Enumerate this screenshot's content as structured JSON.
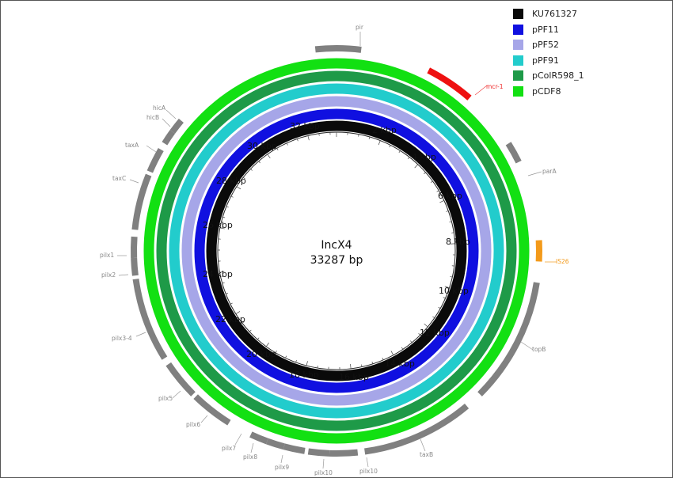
{
  "chart_data": {
    "type": "circular-genome-map",
    "title": "IncX4",
    "subtitle": "33287 bp",
    "total_length_bp": 33287,
    "center": [
      425,
      317
    ],
    "legend": [
      {
        "name": "KU761327",
        "color": "#0a0a0a"
      },
      {
        "name": "pPF11",
        "color": "#1010e0"
      },
      {
        "name": "pPF52",
        "color": "#a6a6e8"
      },
      {
        "name": "pPF91",
        "color": "#22cccc"
      },
      {
        "name": "pColR598_1",
        "color": "#1e9a48"
      },
      {
        "name": "pCDF8",
        "color": "#12e012"
      }
    ],
    "rings": [
      {
        "name": "KU761327",
        "color": "#0a0a0a",
        "radius": 158,
        "width": 13
      },
      {
        "name": "pPF11",
        "color": "#1010e0",
        "radius": 173,
        "width": 13
      },
      {
        "name": "pPF52",
        "color": "#a6a6e8",
        "radius": 189,
        "width": 13
      },
      {
        "name": "pPF91",
        "color": "#22cccc",
        "radius": 205,
        "width": 13
      },
      {
        "name": "pColR598_1",
        "color": "#1e9a48",
        "radius": 221,
        "width": 13
      },
      {
        "name": "pCDF8",
        "color": "#12e012",
        "radius": 237,
        "width": 13
      }
    ],
    "tick_labels": [
      "2 kbp",
      "4 kbp",
      "6 kbp",
      "8 kbp",
      "10 kbp",
      "12 kbp",
      "14 kbp",
      "16 kbp",
      "18 kbp",
      "20 kbp",
      "22 kbp",
      "24 kbp",
      "26 kbp",
      "28 kbp",
      "30 kbp",
      "32 kbp"
    ],
    "genes": [
      {
        "name": "pir",
        "start_deg": -6,
        "end_deg": 7,
        "color": "#808080"
      },
      {
        "name": "mcr-1",
        "start_deg": 27,
        "end_deg": 41,
        "color": "#ee1111"
      },
      {
        "name": "parA",
        "start_deg": 58,
        "end_deg": 64,
        "color": "#808080"
      },
      {
        "name": "IS26",
        "start_deg": 87,
        "end_deg": 93,
        "color": "#f39a1a"
      },
      {
        "name": "topB",
        "start_deg": 99,
        "end_deg": 135,
        "color": "#808080"
      },
      {
        "name": "taxB",
        "start_deg": 140,
        "end_deg": 172,
        "color": "#808080"
      },
      {
        "name": "pilx10",
        "start_deg": 174,
        "end_deg": 182,
        "color": "#808080"
      },
      {
        "name": "pilx10",
        "start_deg": 182,
        "end_deg": 188,
        "color": "#808080"
      },
      {
        "name": "pilx9",
        "start_deg": 189,
        "end_deg": 195,
        "color": "#808080"
      },
      {
        "name": "pilx8",
        "start_deg": 195,
        "end_deg": 200,
        "color": "#808080"
      },
      {
        "name": "pilx7",
        "start_deg": 200,
        "end_deg": 205,
        "color": "#808080"
      },
      {
        "name": "pilx6",
        "start_deg": 212,
        "end_deg": 224,
        "color": "#808080"
      },
      {
        "name": "pilx5",
        "start_deg": 225,
        "end_deg": 236,
        "color": "#808080"
      },
      {
        "name": "pilx3-4",
        "start_deg": 238,
        "end_deg": 262,
        "color": "#808080"
      },
      {
        "name": "pilx2",
        "start_deg": 263,
        "end_deg": 268,
        "color": "#808080"
      },
      {
        "name": "pilx1",
        "start_deg": 268,
        "end_deg": 274,
        "color": "#808080"
      },
      {
        "name": "taxC",
        "start_deg": 276,
        "end_deg": 292,
        "color": "#808080"
      },
      {
        "name": "taxA",
        "start_deg": 293,
        "end_deg": 300,
        "color": "#808080"
      },
      {
        "name": "hicB",
        "start_deg": 302,
        "end_deg": 306,
        "color": "#808080"
      },
      {
        "name": "hicA",
        "start_deg": 306,
        "end_deg": 310,
        "color": "#808080"
      }
    ]
  },
  "diagram": {
    "center_title": "IncX4",
    "center_subtitle": "33287 bp",
    "gene_labels": {
      "pir": "pir",
      "mcr1": "mcr-1",
      "parA": "parA",
      "is26": "IS26",
      "topB": "topB",
      "taxB": "taxB",
      "pilx10a": "pilx10",
      "pilx10b": "pilx10",
      "pilx9": "pilx9",
      "pilx8": "pilx8",
      "pilx7": "pilx7",
      "pilx6": "pilx6",
      "pilx5": "pilx5",
      "pilx34": "pilx3-4",
      "pilx2": "pilx2",
      "pilx1": "pilx1",
      "taxC": "taxC",
      "taxA": "taxA",
      "hicB": "hicB",
      "hicA": "hicA"
    },
    "ticks": {
      "t2": "2 kbp",
      "t4": "4 kbp",
      "t6": "6 kbp",
      "t8": "8 kbp",
      "t10": "10 kbp",
      "t12": "12 kbp",
      "t14": "14 kbp",
      "t16": "16 kbp",
      "t18": "18 kbp",
      "t20": "20 kbp",
      "t22": "22 kbp",
      "t24": "24 kbp",
      "t26": "26 kbp",
      "t28": "28 kbp",
      "t30": "30 kbp",
      "t32": "32 kbp"
    }
  },
  "legend": {
    "items": [
      {
        "label": "KU761327",
        "color": "#0a0a0a"
      },
      {
        "label": "pPF11",
        "color": "#1010e0"
      },
      {
        "label": "pPF52",
        "color": "#a6a6e8"
      },
      {
        "label": "pPF91",
        "color": "#22cccc"
      },
      {
        "label": "pColR598_1",
        "color": "#1e9a48"
      },
      {
        "label": "pCDF8",
        "color": "#12e012"
      }
    ]
  }
}
